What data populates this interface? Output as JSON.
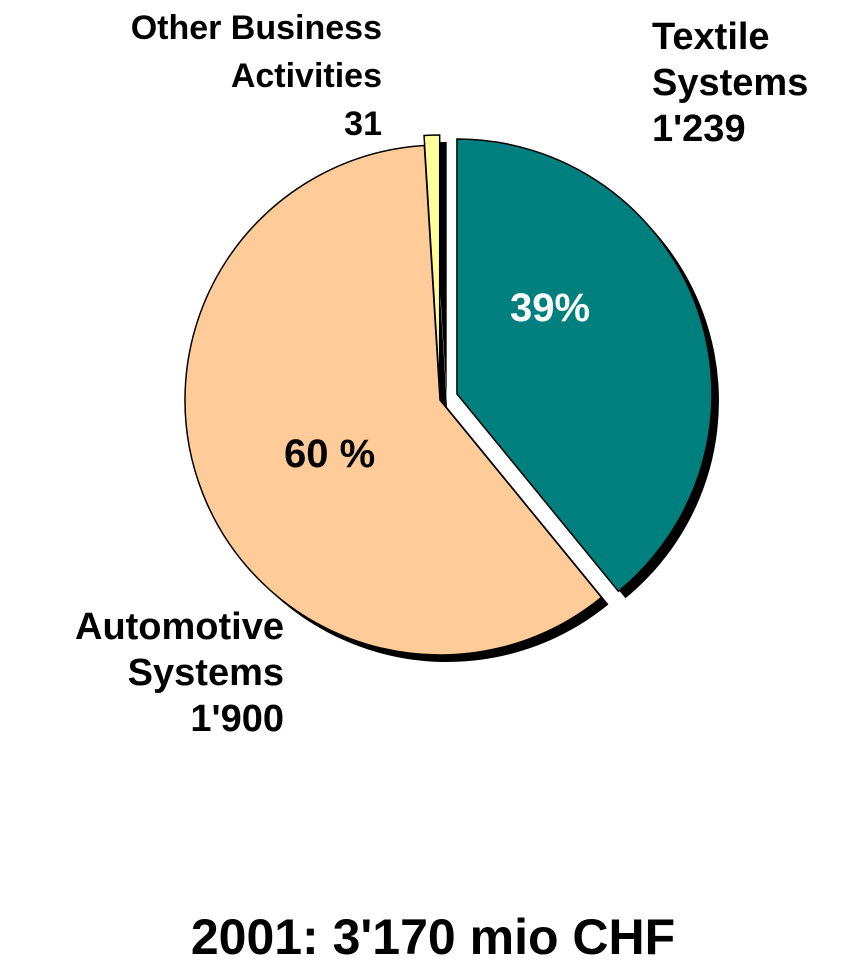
{
  "chart_data": {
    "type": "pie",
    "title": "2001: 3'170 mio CHF",
    "slices": [
      {
        "id": "textile",
        "name": [
          "Textile",
          "Systems"
        ],
        "value": 1239,
        "value_label": "1'239",
        "percent_label": "39%",
        "color": "#007F7F"
      },
      {
        "id": "auto",
        "name": [
          "Automotive",
          "Systems"
        ],
        "value": 1900,
        "value_label": "1'900",
        "percent_label": "60 %",
        "color": "#FFCC99"
      },
      {
        "id": "other",
        "name": [
          "Other Business",
          "Activities"
        ],
        "value": 31,
        "value_label": "31",
        "percent_label": "",
        "color": "#FFFF99"
      }
    ],
    "exploded": [
      "textile",
      "other"
    ],
    "shadow_color": "#000000"
  }
}
